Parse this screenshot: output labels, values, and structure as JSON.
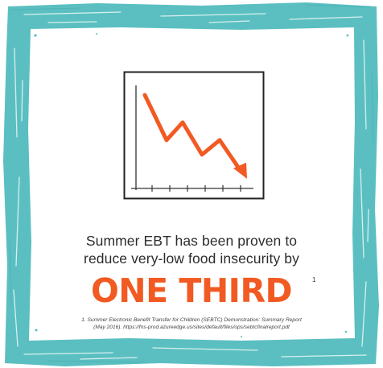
{
  "card": {
    "border_color": "#5bbfc1",
    "accent_color": "#f15a22"
  },
  "graphic": {
    "icon": "downward-trend-chart-icon"
  },
  "headline": {
    "line1": "Summer EBT has been proven to",
    "line2": "reduce very-low food insecurity by"
  },
  "highlight": {
    "text": "ONE THIRD",
    "footnote_marker": "1"
  },
  "footnote": {
    "line1": "1. Summer Electronic Benefit Transfer for Children (SEBTC) Demonstration: Summary Report",
    "line2": "(May 2016). https://fns-prod.azureedge.us/sites/default/files/ops/sebtcfinalreport.pdf"
  }
}
